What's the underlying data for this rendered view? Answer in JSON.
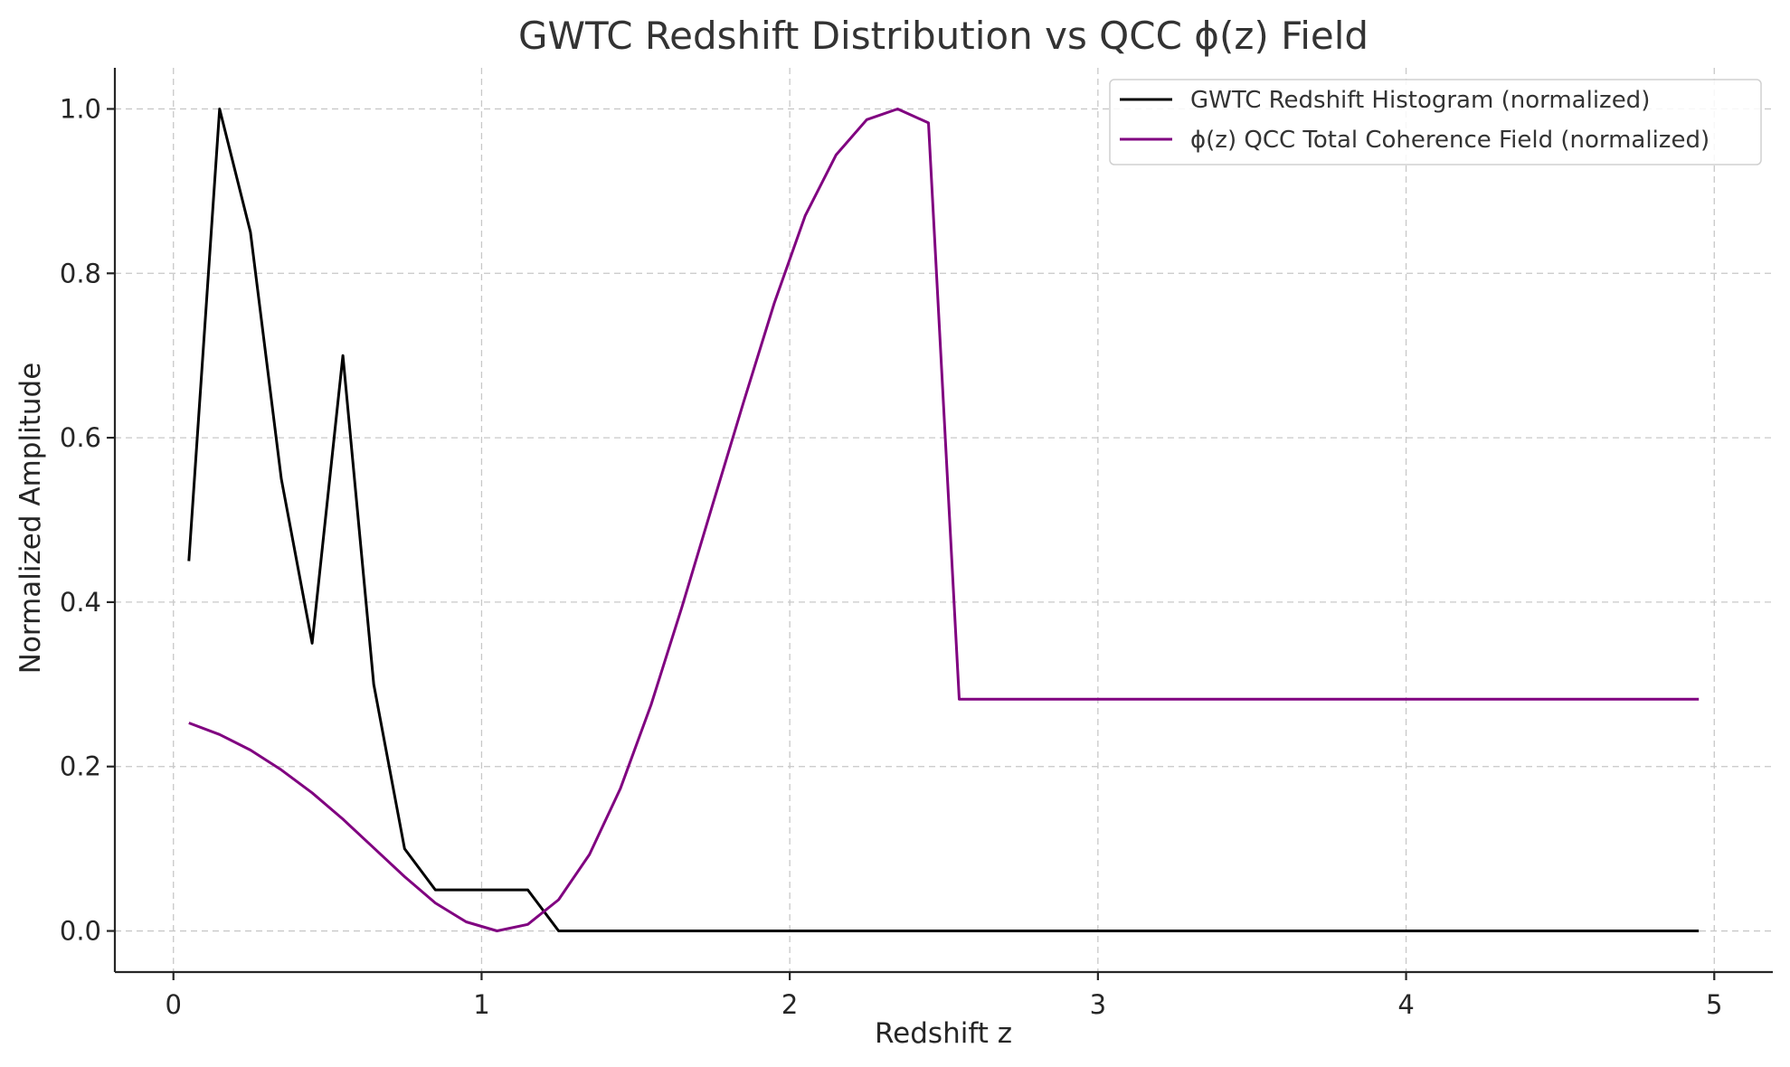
{
  "chart_data": {
    "type": "line",
    "title": "GWTC Redshift Distribution vs QCC ϕ(z) Field",
    "xlabel": "Redshift z",
    "ylabel": "Normalized Amplitude",
    "xlim": [
      -0.19,
      5.19
    ],
    "ylim": [
      -0.05,
      1.05
    ],
    "xticks": [
      0,
      1,
      2,
      3,
      4,
      5
    ],
    "xtick_labels": [
      "0",
      "1",
      "2",
      "3",
      "4",
      "5"
    ],
    "yticks": [
      0.0,
      0.2,
      0.4,
      0.6,
      0.8,
      1.0
    ],
    "ytick_labels": [
      "0.0",
      "0.2",
      "0.4",
      "0.6",
      "0.8",
      "1.0"
    ],
    "grid": true,
    "legend_position": "top-right",
    "series": [
      {
        "name": "GWTC Redshift Histogram (normalized)",
        "color": "#000000",
        "points": [
          [
            0.05,
            0.45
          ],
          [
            0.15,
            1.0
          ],
          [
            0.25,
            0.85
          ],
          [
            0.35,
            0.55
          ],
          [
            0.45,
            0.35
          ],
          [
            0.55,
            0.7
          ],
          [
            0.65,
            0.3
          ],
          [
            0.75,
            0.1
          ],
          [
            0.85,
            0.05
          ],
          [
            0.95,
            0.05
          ],
          [
            1.05,
            0.05
          ],
          [
            1.15,
            0.05
          ],
          [
            1.25,
            0.0
          ],
          [
            4.95,
            0.0
          ]
        ]
      },
      {
        "name": "ϕ(z) QCC Total Coherence Field (normalized)",
        "color": "#800080",
        "points": [
          [
            0.05,
            0.253
          ],
          [
            0.15,
            0.239
          ],
          [
            0.25,
            0.22
          ],
          [
            0.35,
            0.196
          ],
          [
            0.45,
            0.168
          ],
          [
            0.55,
            0.136
          ],
          [
            0.65,
            0.101
          ],
          [
            0.75,
            0.066
          ],
          [
            0.85,
            0.034
          ],
          [
            0.95,
            0.011
          ],
          [
            1.05,
            0.0
          ],
          [
            1.15,
            0.008
          ],
          [
            1.25,
            0.038
          ],
          [
            1.35,
            0.093
          ],
          [
            1.45,
            0.173
          ],
          [
            1.55,
            0.275
          ],
          [
            1.65,
            0.394
          ],
          [
            1.75,
            0.519
          ],
          [
            1.85,
            0.643
          ],
          [
            1.95,
            0.764
          ],
          [
            2.05,
            0.87
          ],
          [
            2.15,
            0.944
          ],
          [
            2.25,
            0.987
          ],
          [
            2.35,
            1.0
          ],
          [
            2.45,
            0.983
          ],
          [
            2.55,
            0.282
          ],
          [
            4.95,
            0.282
          ]
        ]
      }
    ]
  }
}
